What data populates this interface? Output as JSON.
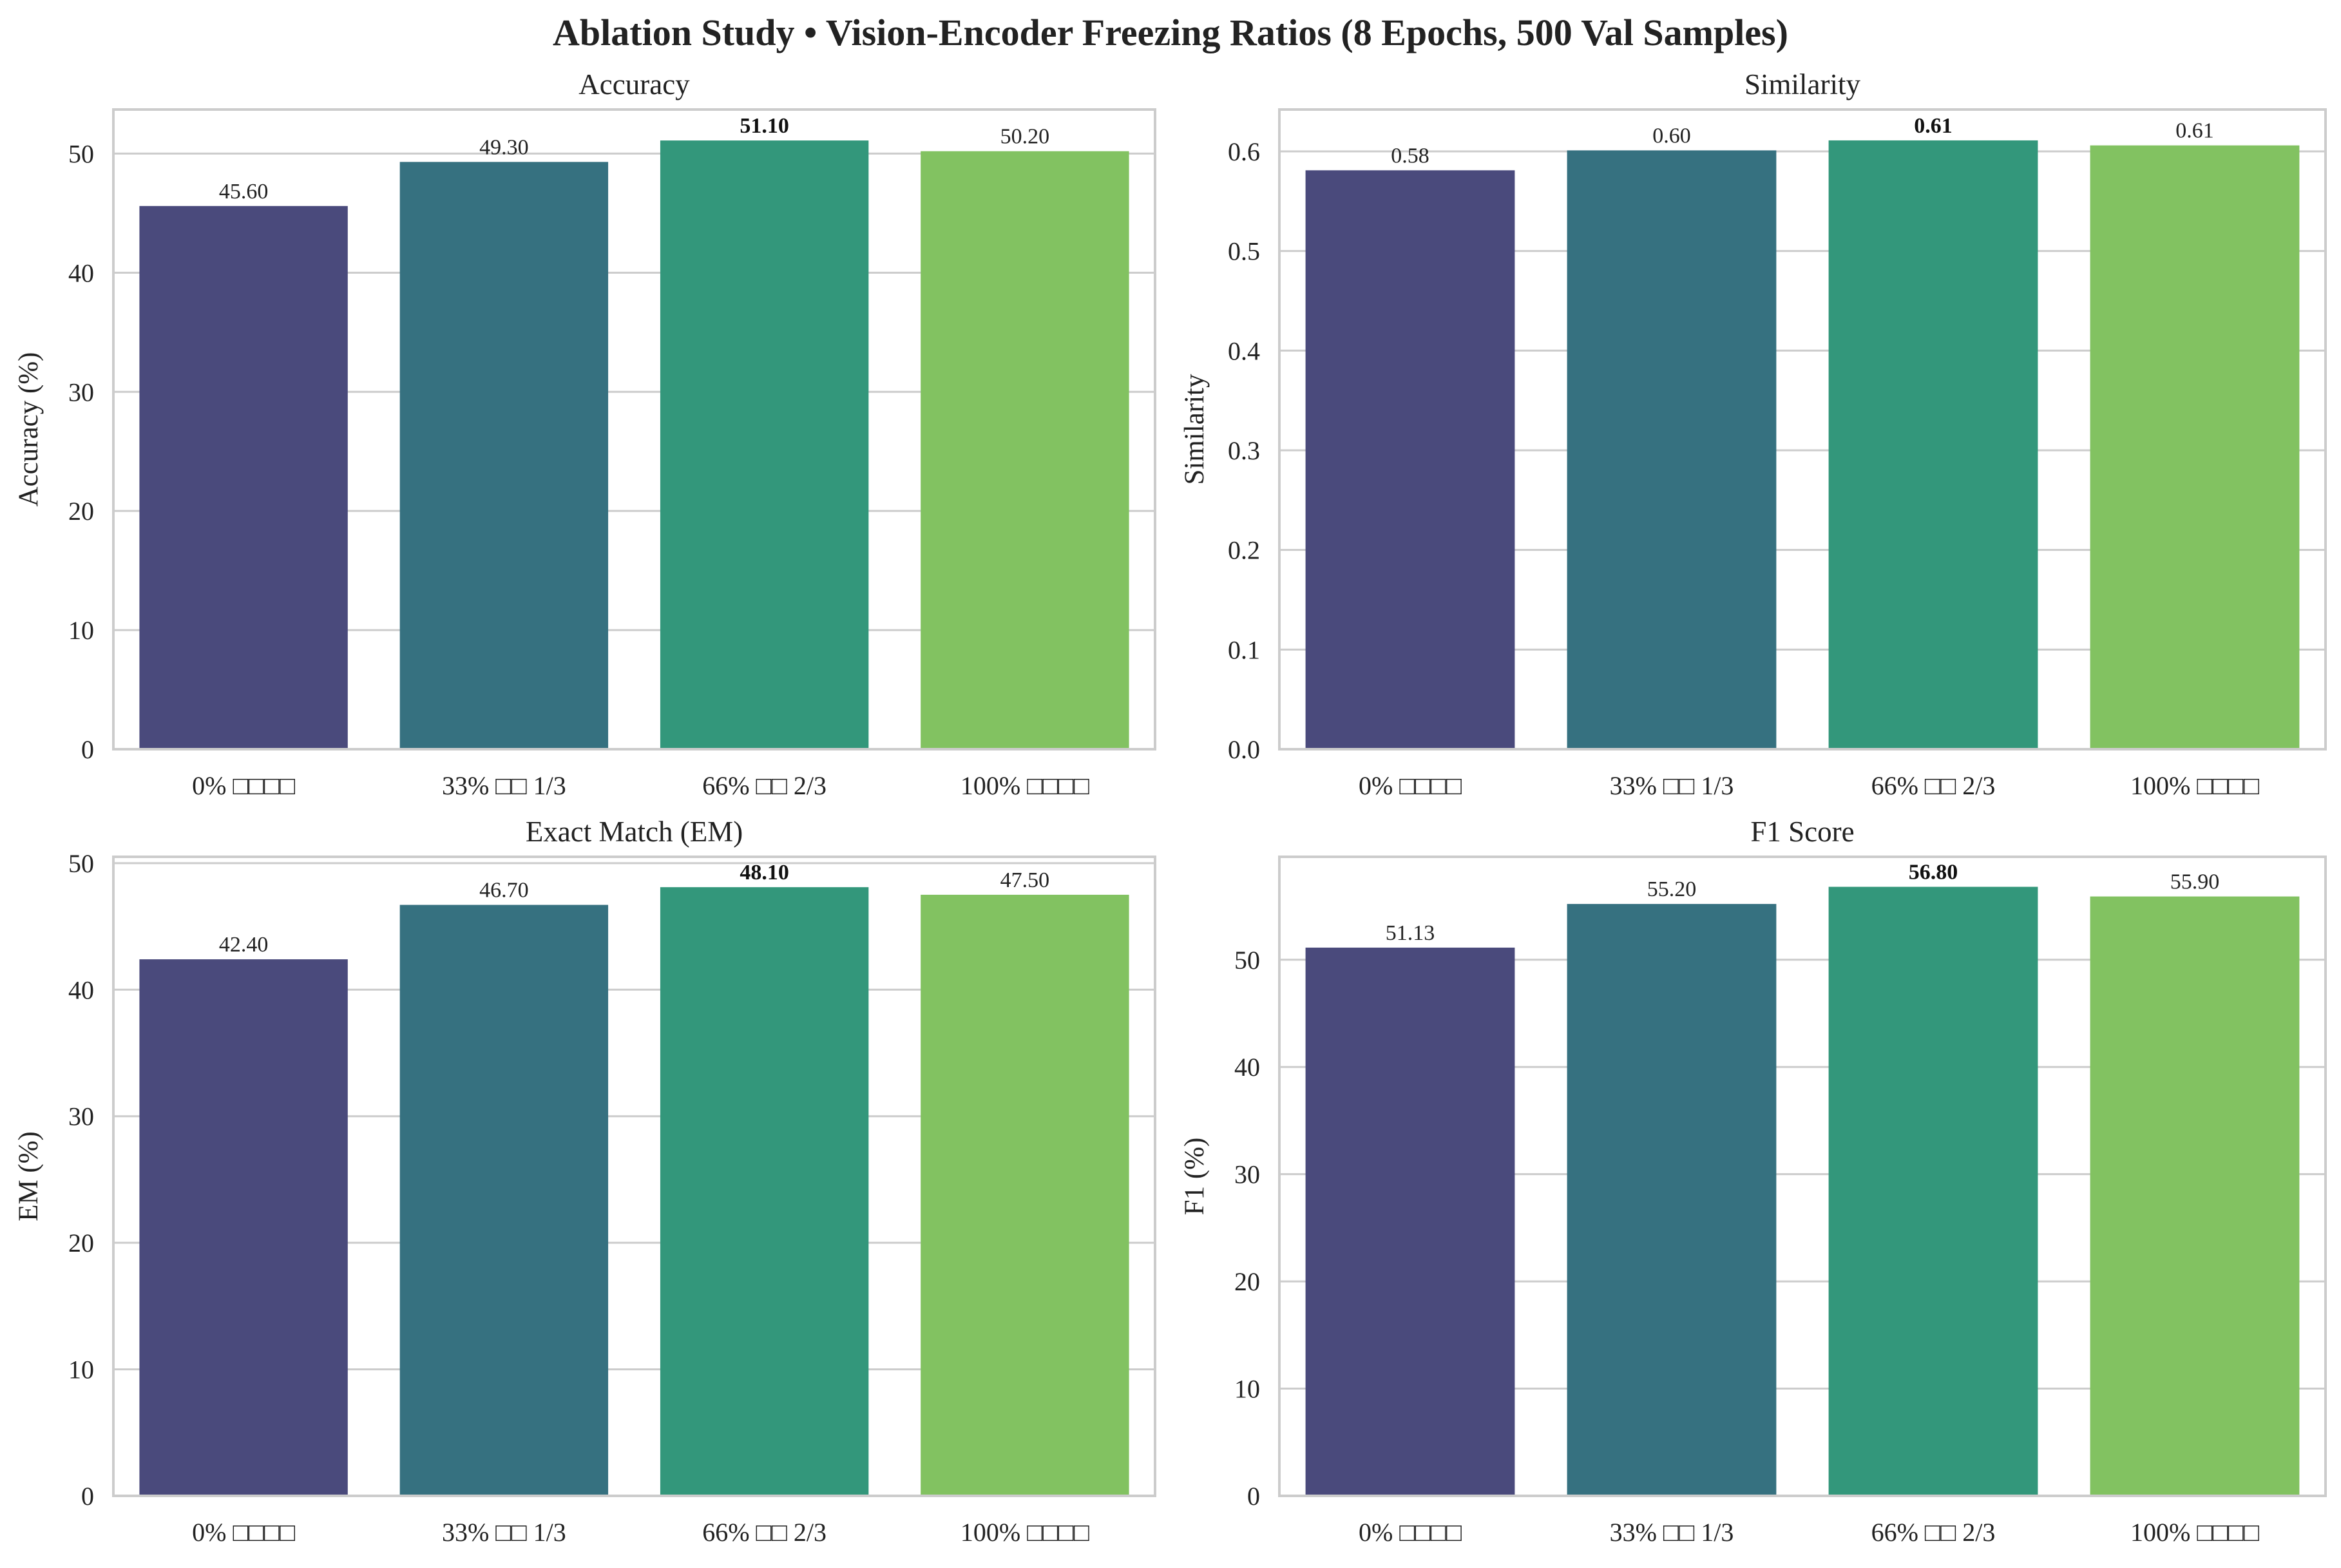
{
  "figure_title": "Ablation Study • Vision-Encoder Freezing Ratios (8 Epochs, 500 Val Samples)",
  "colors": [
    "#4a4a7c",
    "#367180",
    "#33977b",
    "#82c261"
  ],
  "chart_data": [
    {
      "type": "bar",
      "title": "Accuracy",
      "xlabel": "",
      "ylabel": "Accuracy (%)",
      "categories": [
        "0% □□□□",
        "33% □□ 1/3",
        "66% □□ 2/3",
        "100% □□□□"
      ],
      "values": [
        45.6,
        49.3,
        51.1,
        50.2
      ],
      "value_labels": [
        "45.60",
        "49.30",
        "51.10",
        "50.20"
      ],
      "best_index": 2,
      "ylim": [
        0,
        53.7
      ],
      "yticks": [
        0,
        10,
        20,
        30,
        40,
        50
      ],
      "ytick_labels": [
        "0",
        "10",
        "20",
        "30",
        "40",
        "50"
      ],
      "grid": true
    },
    {
      "type": "bar",
      "title": "Similarity",
      "xlabel": "",
      "ylabel": "Similarity",
      "categories": [
        "0% □□□□",
        "33% □□ 1/3",
        "66% □□ 2/3",
        "100% □□□□"
      ],
      "values": [
        0.581,
        0.601,
        0.611,
        0.606
      ],
      "value_labels": [
        "0.58",
        "0.60",
        "0.61",
        "0.61"
      ],
      "best_index": 2,
      "ylim": [
        0,
        0.642
      ],
      "yticks": [
        0,
        0.1,
        0.2,
        0.3,
        0.4,
        0.5,
        0.6
      ],
      "ytick_labels": [
        "0.0",
        "0.1",
        "0.2",
        "0.3",
        "0.4",
        "0.5",
        "0.6"
      ],
      "grid": true
    },
    {
      "type": "bar",
      "title": "Exact Match (EM)",
      "xlabel": "",
      "ylabel": "EM (%)",
      "categories": [
        "0% □□□□",
        "33% □□ 1/3",
        "66% □□ 2/3",
        "100% □□□□"
      ],
      "values": [
        42.4,
        46.7,
        48.1,
        47.5
      ],
      "value_labels": [
        "42.40",
        "46.70",
        "48.10",
        "47.50"
      ],
      "best_index": 2,
      "ylim": [
        0,
        50.5
      ],
      "yticks": [
        0,
        10,
        20,
        30,
        40,
        50
      ],
      "ytick_labels": [
        "0",
        "10",
        "20",
        "30",
        "40",
        "50"
      ],
      "grid": true
    },
    {
      "type": "bar",
      "title": "F1 Score",
      "xlabel": "",
      "ylabel": "F1 (%)",
      "categories": [
        "0% □□□□",
        "33% □□ 1/3",
        "66% □□ 2/3",
        "100% □□□□"
      ],
      "values": [
        51.13,
        55.2,
        56.8,
        55.9
      ],
      "value_labels": [
        "51.13",
        "55.20",
        "56.80",
        "55.90"
      ],
      "best_index": 2,
      "ylim": [
        0,
        59.6
      ],
      "yticks": [
        0,
        10,
        20,
        30,
        40,
        50
      ],
      "ytick_labels": [
        "0",
        "10",
        "20",
        "30",
        "40",
        "50"
      ],
      "grid": true
    }
  ]
}
